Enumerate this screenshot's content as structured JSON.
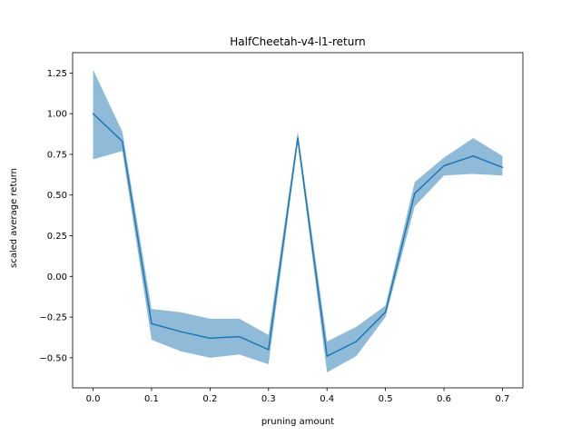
{
  "chart_data": {
    "type": "line",
    "title": "HalfCheetah-v4-l1-return",
    "xlabel": "pruning amount",
    "ylabel": "scaled average return",
    "xlim": [
      -0.035,
      0.735
    ],
    "ylim": [
      -0.685,
      1.375
    ],
    "xticks": [
      0.0,
      0.1,
      0.2,
      0.3,
      0.4,
      0.5,
      0.6,
      0.7
    ],
    "xtick_labels": [
      "0.0",
      "0.1",
      "0.2",
      "0.3",
      "0.4",
      "0.5",
      "0.6",
      "0.7"
    ],
    "yticks": [
      -0.5,
      -0.25,
      0.0,
      0.25,
      0.5,
      0.75,
      1.0,
      1.25
    ],
    "ytick_labels": [
      "−0.50",
      "−0.25",
      "0.00",
      "0.25",
      "0.50",
      "0.75",
      "1.00",
      "1.25"
    ],
    "grid": false,
    "legend": "none",
    "series": [
      {
        "color": "#1f77b4",
        "band_color": "#1f77b4",
        "band_opacity": 0.5,
        "x": [
          0.0,
          0.05,
          0.1,
          0.15,
          0.2,
          0.25,
          0.3,
          0.35,
          0.4,
          0.45,
          0.5,
          0.55,
          0.6,
          0.65,
          0.7
        ],
        "mean": [
          1.0,
          0.83,
          -0.29,
          -0.34,
          -0.38,
          -0.37,
          -0.45,
          0.85,
          -0.49,
          -0.4,
          -0.22,
          0.51,
          0.68,
          0.74,
          0.67
        ],
        "upper": [
          1.27,
          0.89,
          -0.2,
          -0.22,
          -0.26,
          -0.26,
          -0.36,
          0.89,
          -0.4,
          -0.31,
          -0.18,
          0.58,
          0.73,
          0.85,
          0.74
        ],
        "lower": [
          0.72,
          0.77,
          -0.39,
          -0.46,
          -0.5,
          -0.48,
          -0.54,
          0.82,
          -0.59,
          -0.49,
          -0.25,
          0.43,
          0.62,
          0.63,
          0.62
        ]
      }
    ]
  }
}
